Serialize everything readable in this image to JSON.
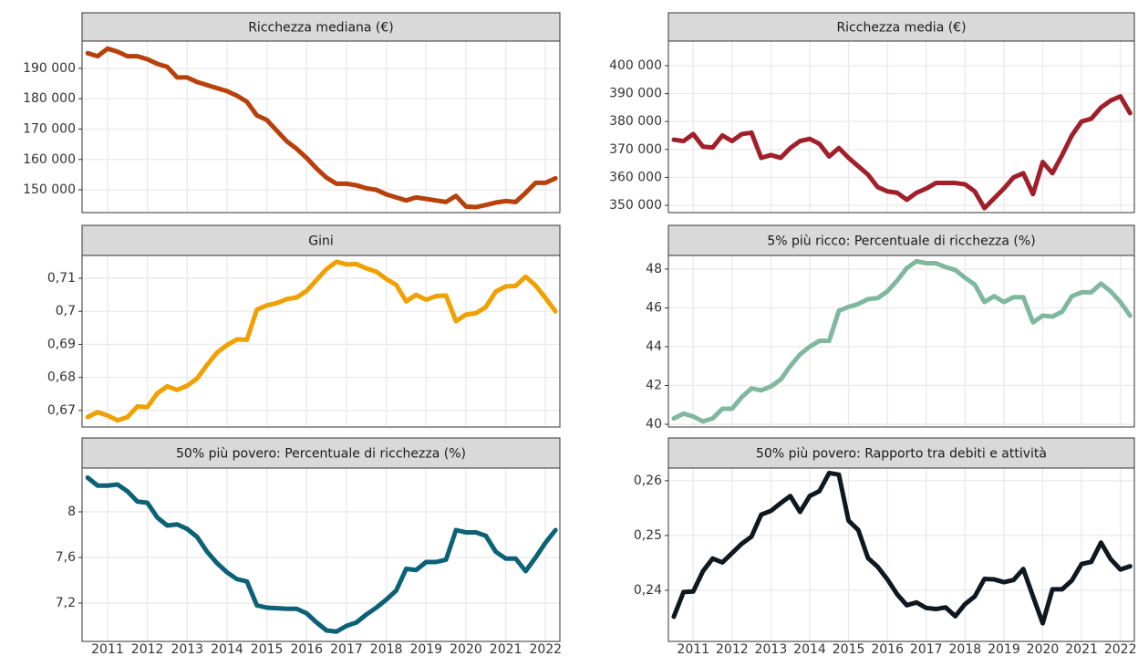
{
  "chart_data": [
    {
      "type": "line",
      "title": "Ricchezza mediana (€)",
      "color": "#b8400a",
      "x": [
        2011,
        2011.25,
        2011.5,
        2011.75,
        2012,
        2012.25,
        2012.5,
        2012.75,
        2013,
        2013.25,
        2013.5,
        2013.75,
        2014,
        2014.25,
        2014.5,
        2014.75,
        2015,
        2015.25,
        2015.5,
        2015.75,
        2016,
        2016.25,
        2016.5,
        2016.75,
        2017,
        2017.25,
        2017.5,
        2017.75,
        2018,
        2018.25,
        2018.5,
        2018.75,
        2019,
        2019.25,
        2019.5,
        2019.75,
        2020,
        2020.25,
        2020.5,
        2020.75,
        2021,
        2021.25,
        2021.5,
        2021.75,
        2022,
        2022.25,
        2022.5,
        2022.75
      ],
      "values": [
        195000,
        194000,
        196500,
        195500,
        194000,
        194000,
        193000,
        191500,
        190500,
        187000,
        187000,
        185500,
        184500,
        183500,
        182500,
        181000,
        179000,
        174500,
        173000,
        169500,
        166000,
        163500,
        160500,
        157000,
        154000,
        152000,
        152000,
        151500,
        150500,
        150000,
        148500,
        147500,
        146500,
        147500,
        147000,
        146500,
        146000,
        148000,
        144500,
        144300,
        145000,
        145800,
        146300,
        146000,
        149000,
        152300,
        152300,
        153800
      ],
      "xlim": [
        2010.86,
        2022.86
      ],
      "ylim": [
        142500,
        199000
      ],
      "yticks": [
        {
          "value": 150000,
          "label": "150 000"
        },
        {
          "value": 160000,
          "label": "160 000"
        },
        {
          "value": 170000,
          "label": "170 000"
        },
        {
          "value": 180000,
          "label": "180 000"
        },
        {
          "value": 190000,
          "label": "190 000"
        }
      ],
      "grid": true
    },
    {
      "type": "line",
      "title": "Gini",
      "color": "#f0a000",
      "x": [
        2011,
        2011.25,
        2011.5,
        2011.75,
        2012,
        2012.25,
        2012.5,
        2012.75,
        2013,
        2013.25,
        2013.5,
        2013.75,
        2014,
        2014.25,
        2014.5,
        2014.75,
        2015,
        2015.25,
        2015.5,
        2015.75,
        2016,
        2016.25,
        2016.5,
        2016.75,
        2017,
        2017.25,
        2017.5,
        2017.75,
        2018,
        2018.25,
        2018.5,
        2018.75,
        2019,
        2019.25,
        2019.5,
        2019.75,
        2020,
        2020.25,
        2020.5,
        2020.75,
        2021,
        2021.25,
        2021.5,
        2021.75,
        2022,
        2022.25,
        2022.5,
        2022.75
      ],
      "values": [
        0.668,
        0.6695,
        0.6685,
        0.667,
        0.668,
        0.6712,
        0.671,
        0.6752,
        0.6773,
        0.6762,
        0.6775,
        0.6797,
        0.6838,
        0.6875,
        0.6898,
        0.6915,
        0.6914,
        0.7005,
        0.7018,
        0.7025,
        0.7037,
        0.7042,
        0.7062,
        0.7095,
        0.7128,
        0.715,
        0.7142,
        0.7143,
        0.713,
        0.712,
        0.7098,
        0.708,
        0.703,
        0.705,
        0.7035,
        0.7046,
        0.7048,
        0.697,
        0.699,
        0.6994,
        0.7013,
        0.706,
        0.7075,
        0.7077,
        0.7105,
        0.7078,
        0.704,
        0.7
      ],
      "xlim": [
        2010.86,
        2022.86
      ],
      "ylim": [
        0.665,
        0.7169
      ],
      "yticks": [
        {
          "value": 0.67,
          "label": "0,67"
        },
        {
          "value": 0.68,
          "label": "0,68"
        },
        {
          "value": 0.69,
          "label": "0,69"
        },
        {
          "value": 0.7,
          "label": "0,7"
        },
        {
          "value": 0.71,
          "label": "0,71"
        }
      ],
      "grid": true
    },
    {
      "type": "line",
      "title": "50% più povero: Percentuale di ricchezza (%)",
      "color": "#0b6177",
      "x": [
        2011,
        2011.25,
        2011.5,
        2011.75,
        2012,
        2012.25,
        2012.5,
        2012.75,
        2013,
        2013.25,
        2013.5,
        2013.75,
        2014,
        2014.25,
        2014.5,
        2014.75,
        2015,
        2015.25,
        2015.5,
        2015.75,
        2016,
        2016.25,
        2016.5,
        2016.75,
        2017,
        2017.25,
        2017.5,
        2017.75,
        2018,
        2018.25,
        2018.5,
        2018.75,
        2019,
        2019.25,
        2019.5,
        2019.75,
        2020,
        2020.25,
        2020.5,
        2020.75,
        2021,
        2021.25,
        2021.5,
        2021.75,
        2022,
        2022.25,
        2022.5,
        2022.75
      ],
      "values": [
        8.3,
        8.23,
        8.23,
        8.24,
        8.18,
        8.09,
        8.08,
        7.95,
        7.88,
        7.89,
        7.85,
        7.78,
        7.65,
        7.55,
        7.47,
        7.41,
        7.39,
        7.18,
        7.16,
        7.155,
        7.15,
        7.15,
        7.11,
        7.03,
        6.96,
        6.95,
        7.0,
        7.03,
        7.1,
        7.16,
        7.23,
        7.31,
        7.5,
        7.49,
        7.56,
        7.56,
        7.58,
        7.84,
        7.82,
        7.82,
        7.79,
        7.65,
        7.59,
        7.59,
        7.48,
        7.6,
        7.73,
        7.84
      ],
      "xlim": [
        2010.86,
        2022.86
      ],
      "ylim": [
        6.864,
        8.384
      ],
      "yticks": [
        {
          "value": 7.2,
          "label": "7,2"
        },
        {
          "value": 7.6,
          "label": "7,6"
        },
        8
      ],
      "xticks": [
        {
          "value": 2011.5,
          "label": "2011"
        },
        {
          "value": 2012.5,
          "label": "2012"
        },
        {
          "value": 2013.5,
          "label": "2013"
        },
        {
          "value": 2014.5,
          "label": "2014"
        },
        {
          "value": 2015.5,
          "label": "2015"
        },
        {
          "value": 2016.5,
          "label": "2016"
        },
        {
          "value": 2017.5,
          "label": "2017"
        },
        {
          "value": 2018.5,
          "label": "2018"
        },
        {
          "value": 2019.5,
          "label": "2019"
        },
        {
          "value": 2020.5,
          "label": "2020"
        },
        {
          "value": 2021.5,
          "label": "2021"
        },
        {
          "value": 2022.5,
          "label": "2022"
        }
      ],
      "grid": true
    },
    {
      "type": "line",
      "title": "Ricchezza media (€)",
      "color": "#a01f2a",
      "x": [
        2011,
        2011.25,
        2011.5,
        2011.75,
        2012,
        2012.25,
        2012.5,
        2012.75,
        2013,
        2013.25,
        2013.5,
        2013.75,
        2014,
        2014.25,
        2014.5,
        2014.75,
        2015,
        2015.25,
        2015.5,
        2015.75,
        2016,
        2016.25,
        2016.5,
        2016.75,
        2017,
        2017.25,
        2017.5,
        2017.75,
        2018,
        2018.25,
        2018.5,
        2018.75,
        2019,
        2019.25,
        2019.5,
        2019.75,
        2020,
        2020.25,
        2020.5,
        2020.75,
        2021,
        2021.25,
        2021.5,
        2021.75,
        2022,
        2022.25,
        2022.5,
        2022.75
      ],
      "values": [
        373500,
        373000,
        375500,
        371000,
        370700,
        375000,
        373000,
        375500,
        376000,
        367000,
        368000,
        367000,
        370500,
        373000,
        373800,
        372000,
        367500,
        370500,
        367000,
        364000,
        361000,
        356500,
        355000,
        354500,
        352000,
        354500,
        356000,
        358000,
        358000,
        358000,
        357500,
        355000,
        349000,
        352500,
        356000,
        360000,
        361500,
        354000,
        365500,
        361500,
        368000,
        375000,
        380000,
        381000,
        385000,
        387500,
        389000,
        383000
      ],
      "xlim": [
        2010.86,
        2022.86
      ],
      "ylim": [
        347400,
        408800
      ],
      "yticks": [
        {
          "value": 350000,
          "label": "350 000"
        },
        {
          "value": 360000,
          "label": "360 000"
        },
        {
          "value": 370000,
          "label": "370 000"
        },
        {
          "value": 380000,
          "label": "380 000"
        },
        {
          "value": 390000,
          "label": "390 000"
        },
        {
          "value": 400000,
          "label": "400 000"
        }
      ],
      "grid": true
    },
    {
      "type": "line",
      "title": "5% più ricco: Percentuale di ricchezza (%)",
      "color": "#7fb89e",
      "x": [
        2011,
        2011.25,
        2011.5,
        2011.75,
        2012,
        2012.25,
        2012.5,
        2012.75,
        2013,
        2013.25,
        2013.5,
        2013.75,
        2014,
        2014.25,
        2014.5,
        2014.75,
        2015,
        2015.25,
        2015.5,
        2015.75,
        2016,
        2016.25,
        2016.5,
        2016.75,
        2017,
        2017.25,
        2017.5,
        2017.75,
        2018,
        2018.25,
        2018.5,
        2018.75,
        2019,
        2019.25,
        2019.5,
        2019.75,
        2020,
        2020.25,
        2020.5,
        2020.75,
        2021,
        2021.25,
        2021.5,
        2021.75,
        2022,
        2022.25,
        2022.5,
        2022.75
      ],
      "values": [
        40.3,
        40.55,
        40.4,
        40.15,
        40.3,
        40.8,
        40.8,
        41.4,
        41.85,
        41.75,
        41.95,
        42.3,
        43.0,
        43.6,
        44.0,
        44.3,
        44.3,
        45.85,
        46.05,
        46.2,
        46.45,
        46.5,
        46.85,
        47.4,
        48.05,
        48.4,
        48.3,
        48.3,
        48.1,
        47.95,
        47.55,
        47.2,
        46.3,
        46.6,
        46.3,
        46.55,
        46.55,
        45.25,
        45.6,
        45.55,
        45.8,
        46.6,
        46.8,
        46.8,
        47.25,
        46.85,
        46.3,
        45.6
      ],
      "xlim": [
        2010.86,
        2022.86
      ],
      "ylim": [
        39.86,
        48.7
      ],
      "yticks": [
        40,
        42,
        44,
        46,
        48
      ],
      "grid": true
    },
    {
      "type": "line",
      "title": "50% più povero: Rapporto tra debiti e attività",
      "color": "#0d1820",
      "x": [
        2011,
        2011.25,
        2011.5,
        2011.75,
        2012,
        2012.25,
        2012.5,
        2012.75,
        2013,
        2013.25,
        2013.5,
        2013.75,
        2014,
        2014.25,
        2014.5,
        2014.75,
        2015,
        2015.25,
        2015.5,
        2015.75,
        2016,
        2016.25,
        2016.5,
        2016.75,
        2017,
        2017.25,
        2017.5,
        2017.75,
        2018,
        2018.25,
        2018.5,
        2018.75,
        2019,
        2019.25,
        2019.5,
        2019.75,
        2020,
        2020.25,
        2020.5,
        2020.75,
        2021,
        2021.25,
        2021.5,
        2021.75,
        2022,
        2022.25,
        2022.5,
        2022.75
      ],
      "values": [
        0.2352,
        0.2397,
        0.2398,
        0.2435,
        0.2458,
        0.2451,
        0.2468,
        0.2485,
        0.2498,
        0.2538,
        0.2545,
        0.2559,
        0.2572,
        0.2543,
        0.2572,
        0.2581,
        0.2614,
        0.2611,
        0.2527,
        0.251,
        0.2459,
        0.2443,
        0.242,
        0.2393,
        0.2373,
        0.2378,
        0.2368,
        0.2366,
        0.2369,
        0.2353,
        0.2375,
        0.2389,
        0.2421,
        0.242,
        0.2415,
        0.2419,
        0.2439,
        0.2389,
        0.234,
        0.2402,
        0.2402,
        0.2418,
        0.2448,
        0.2452,
        0.2487,
        0.2457,
        0.2438,
        0.2444
      ],
      "xlim": [
        2010.86,
        2022.86
      ],
      "ylim": [
        0.2307,
        0.2623
      ],
      "yticks": [
        {
          "value": 0.24,
          "label": "0,24"
        },
        {
          "value": 0.25,
          "label": "0,25"
        },
        {
          "value": 0.26,
          "label": "0,26"
        }
      ],
      "xticks": [
        {
          "value": 2011.5,
          "label": "2011"
        },
        {
          "value": 2012.5,
          "label": "2012"
        },
        {
          "value": 2013.5,
          "label": "2013"
        },
        {
          "value": 2014.5,
          "label": "2014"
        },
        {
          "value": 2015.5,
          "label": "2015"
        },
        {
          "value": 2016.5,
          "label": "2016"
        },
        {
          "value": 2017.5,
          "label": "2017"
        },
        {
          "value": 2018.5,
          "label": "2018"
        },
        {
          "value": 2019.5,
          "label": "2019"
        },
        {
          "value": 2020.5,
          "label": "2020"
        },
        {
          "value": 2021.5,
          "label": "2021"
        },
        {
          "value": 2022.5,
          "label": "2022"
        }
      ],
      "grid": true
    }
  ]
}
